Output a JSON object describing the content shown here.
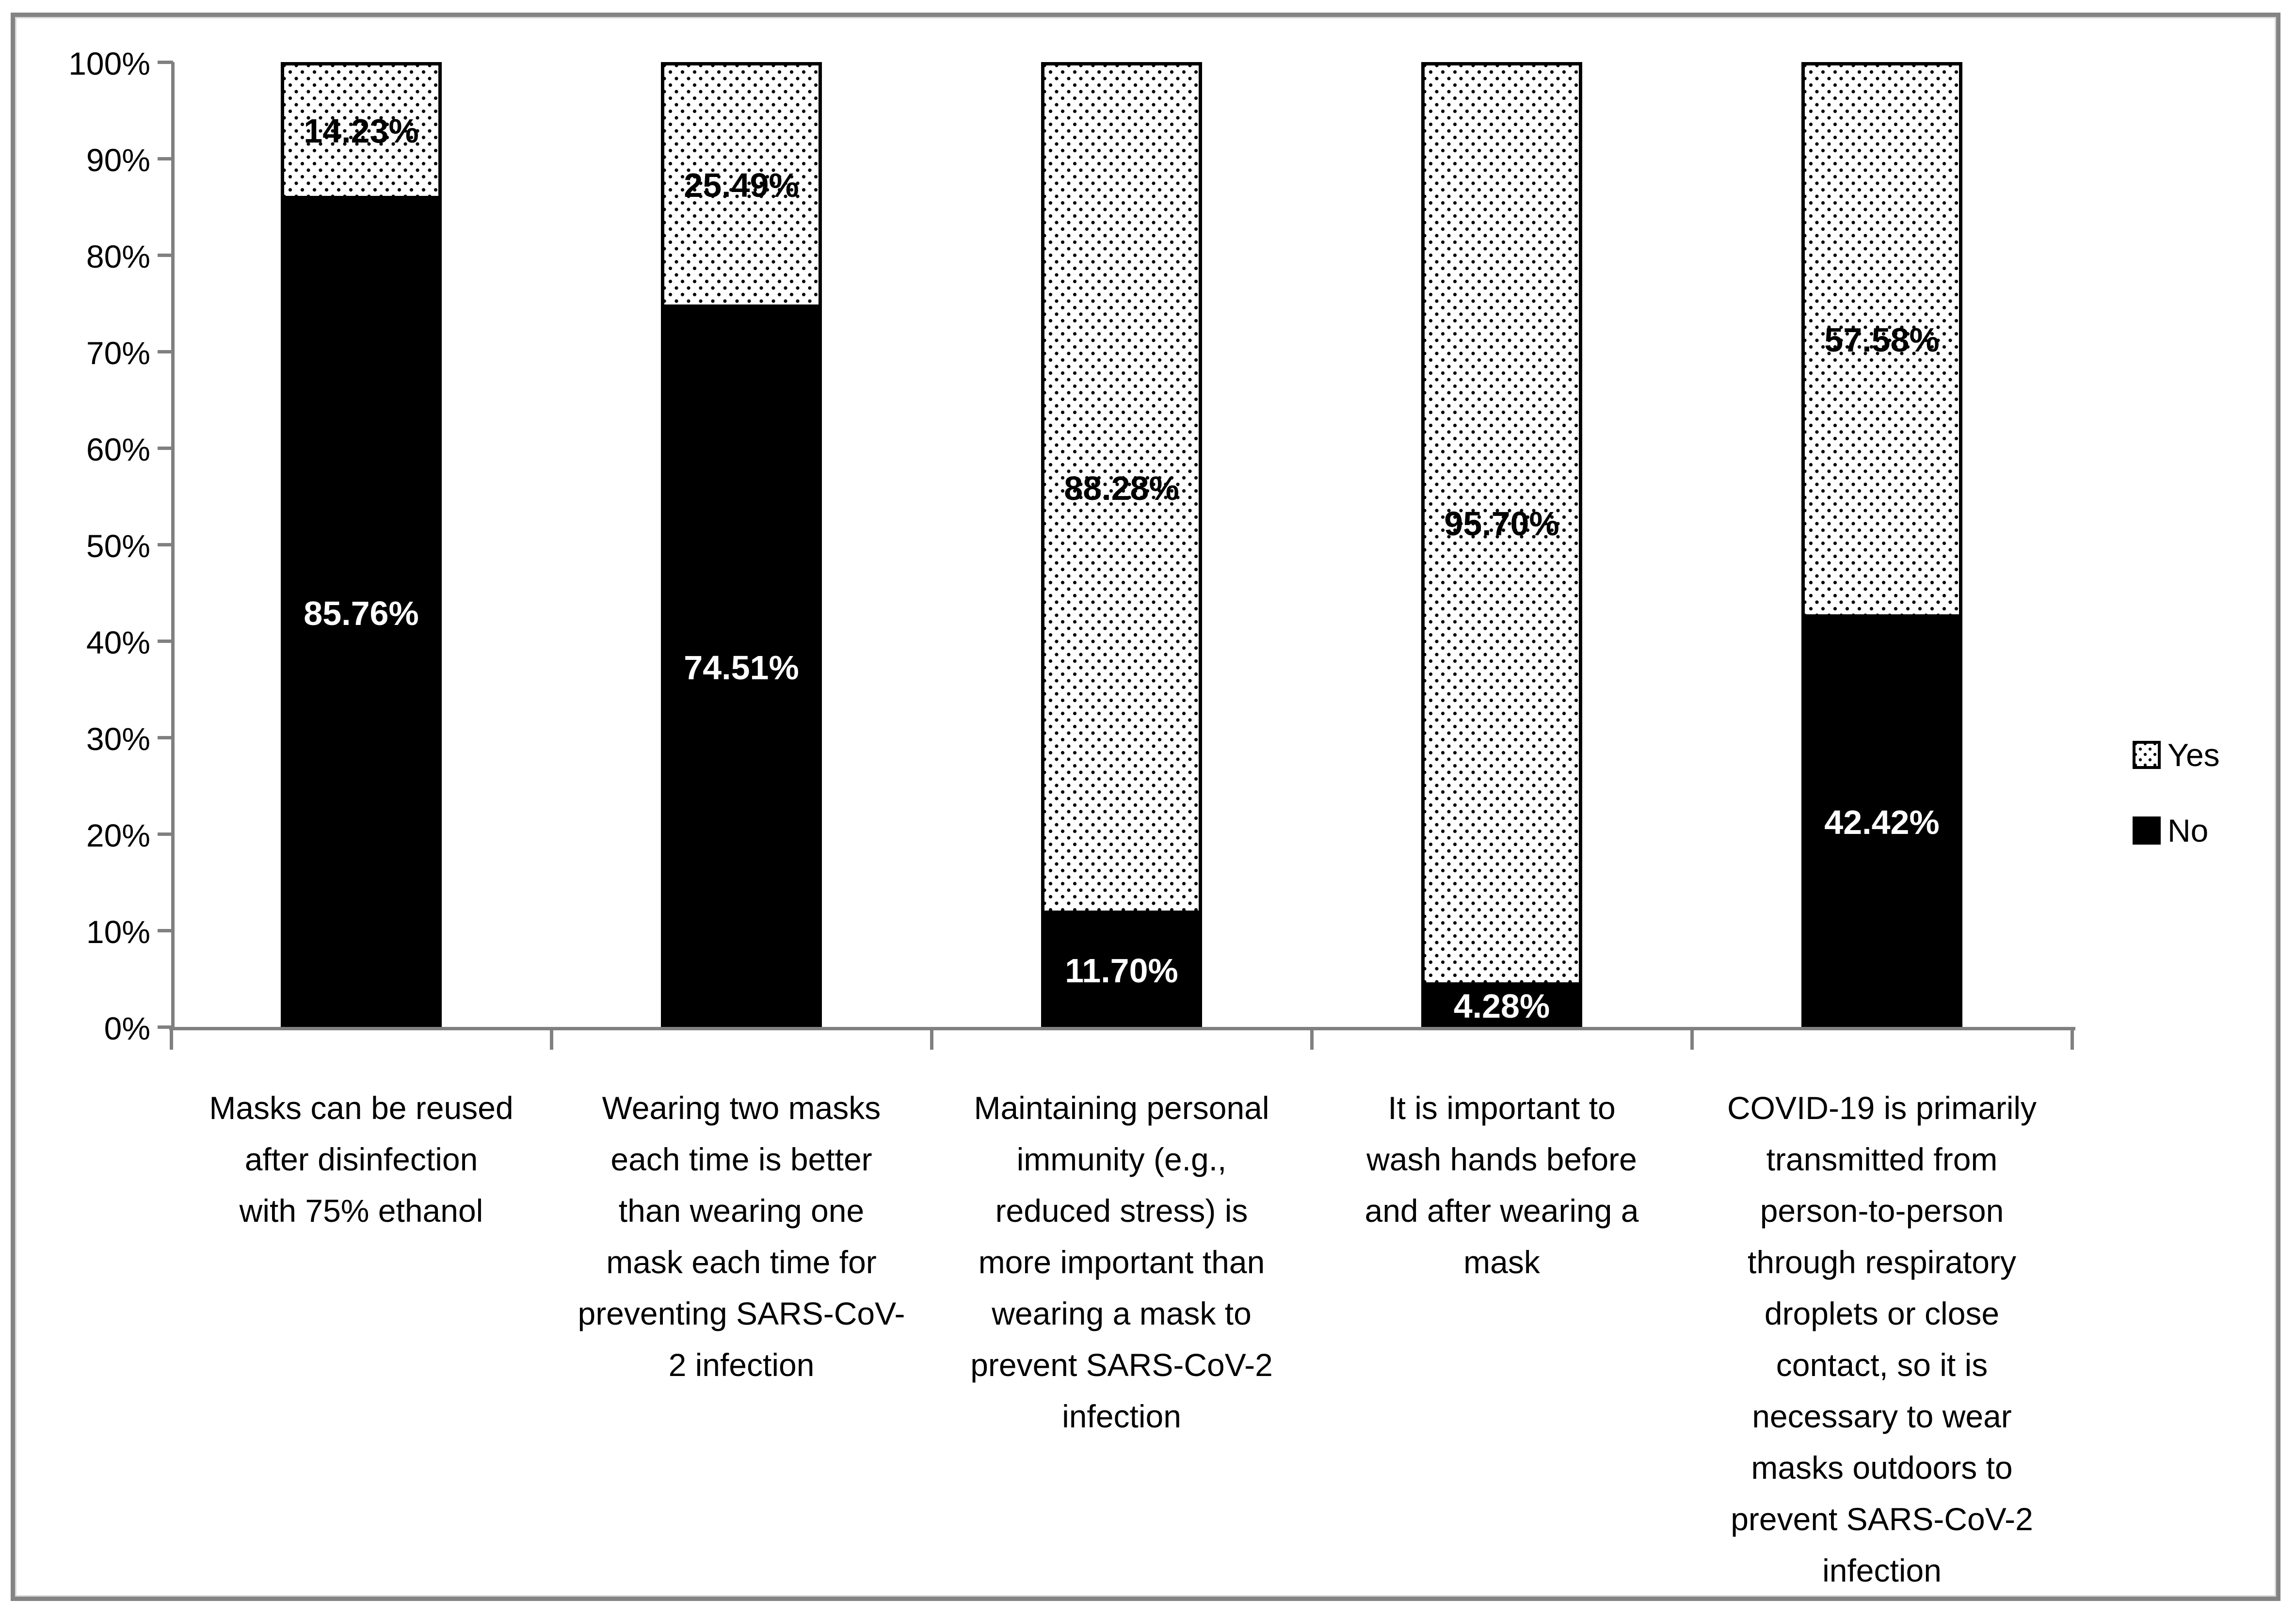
{
  "chart_data": {
    "type": "bar",
    "subtype": "100-percent-stacked-column",
    "title": "",
    "xlabel": "",
    "ylabel": "",
    "ylim": [
      0,
      100
    ],
    "grid": false,
    "y_axis": {
      "ticks": [
        "100%",
        "90%",
        "80%",
        "70%",
        "60%",
        "50%",
        "40%",
        "30%",
        "20%",
        "10%",
        "0%"
      ]
    },
    "categories": [
      "Masks can be reused after disinfection with 75% ethanol",
      "Wearing two masks each time is better than wearing one mask each time for preventing SARS-CoV-2 infection",
      "Maintaining personal immunity (e.g., reduced stress) is more important than wearing a mask to prevent SARS-CoV-2 infection",
      "It is important to wash hands before and after wearing a mask",
      "COVID-19 is primarily transmitted from person-to-person through respiratory droplets or close contact, so it is necessary to wear masks outdoors to prevent SARS-CoV-2 infection"
    ],
    "category_label_lines": [
      [
        "Masks can be reused",
        "after disinfection",
        "with 75% ethanol"
      ],
      [
        "Wearing two masks",
        "each time is better",
        "than wearing one",
        "mask each time for",
        "preventing SARS-CoV-",
        "2 infection"
      ],
      [
        "Maintaining personal",
        "immunity (e.g.,",
        "reduced stress) is",
        "more important than",
        "wearing a mask to",
        "prevent SARS-CoV-2",
        "infection"
      ],
      [
        "It is important to",
        "wash hands before",
        "and after wearing a",
        "mask"
      ],
      [
        "COVID-19 is primarily",
        "transmitted from",
        "person-to-person",
        "through respiratory",
        "droplets or close",
        "contact, so it is",
        "necessary to wear",
        "masks outdoors to",
        "prevent SARS-CoV-2",
        "infection"
      ]
    ],
    "series": [
      {
        "name": "Yes",
        "swatch": "dotted-pattern",
        "values": [
          14.23,
          25.49,
          88.28,
          95.7,
          57.58
        ],
        "data_labels": [
          "14.23%",
          "25.49%",
          "88.28%",
          "95.70%",
          "57.58%"
        ],
        "label_color": "#000000"
      },
      {
        "name": "No",
        "swatch": "solid-black",
        "color": "#000000",
        "values": [
          85.76,
          74.51,
          11.7,
          4.28,
          42.42
        ],
        "data_labels": [
          "85.76%",
          "74.51%",
          "11.70%",
          "4.28%",
          "42.42%"
        ],
        "label_color": "#ffffff"
      }
    ],
    "legend": {
      "position": "right-middle",
      "entries": [
        "Yes",
        "No"
      ]
    },
    "layout_hints": {
      "stack_order_bottom_to_top": [
        "No",
        "Yes"
      ],
      "bar_border": "thin black border around dotted segments",
      "legend_order": [
        "Yes",
        "No"
      ]
    },
    "colors": {
      "bar_no": "#000000",
      "pattern_dot": "#000000",
      "pattern_bg": "#ffffff",
      "axis": "#808080",
      "frame_border": "#848484",
      "text": "#000000",
      "label_on_no": "#ffffff",
      "label_on_yes": "#000000"
    }
  }
}
